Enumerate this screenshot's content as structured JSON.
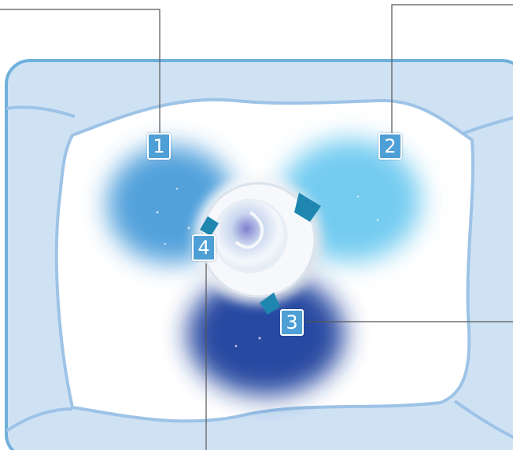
{
  "diagram": {
    "callouts": [
      {
        "id": "1",
        "label": "1"
      },
      {
        "id": "2",
        "label": "2"
      },
      {
        "id": "3",
        "label": "3"
      },
      {
        "id": "4",
        "label": "4"
      }
    ],
    "colors": {
      "frame_fill": "#cfe2f4",
      "frame_stroke": "#6fb0dc",
      "cushion_fill": "#ffffff",
      "cushion_stroke": "#9dc3e6",
      "badge_fill": "#4e9fd6",
      "zone_1": "#3f97d8",
      "zone_2": "#5cc3ee",
      "zone_3": "#1a3f9c",
      "arrow_color": "#1f86b0",
      "leader_line": "#555555"
    }
  }
}
